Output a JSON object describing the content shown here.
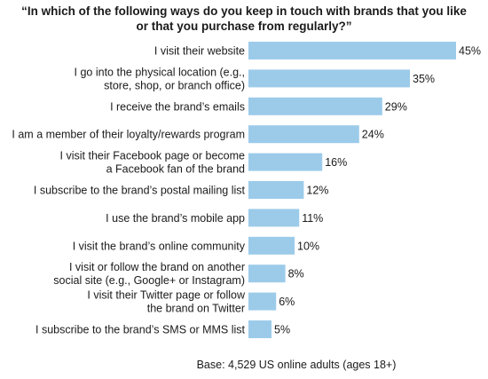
{
  "chart_data": {
    "type": "bar",
    "orientation": "horizontal",
    "title_lines": [
      "“In which of the following ways do you keep in touch with brands that you like",
      "or that you purchase from regularly?”"
    ],
    "categories": [
      [
        "I visit their website"
      ],
      [
        "I go into the physical location (e.g.,",
        "store, shop, or branch office)"
      ],
      [
        "I receive the brand’s emails"
      ],
      [
        "I am a member of their loyalty/rewards program"
      ],
      [
        "I visit their Facebook page or become",
        "a Facebook fan of the brand"
      ],
      [
        "I subscribe to the brand’s postal mailing list"
      ],
      [
        "I use the brand’s mobile app"
      ],
      [
        "I visit the brand’s online community"
      ],
      [
        "I visit or follow the brand on another",
        "social site (e.g., Google+ or Instagram)"
      ],
      [
        "I visit their Twitter page or follow",
        "the brand on Twitter"
      ],
      [
        "I subscribe to the brand’s SMS or MMS list"
      ]
    ],
    "values": [
      45,
      35,
      29,
      24,
      16,
      12,
      11,
      10,
      8,
      6,
      5
    ],
    "value_labels": [
      "45%",
      "35%",
      "29%",
      "24%",
      "16%",
      "12%",
      "11%",
      "10%",
      "8%",
      "6%",
      "5%"
    ],
    "unit": "%",
    "xlim": [
      0,
      45
    ],
    "grid": false,
    "legend": "none",
    "bar_color": "#9ccbea",
    "footnote": "Base: 4,529 US online adults (ages 18+)"
  }
}
